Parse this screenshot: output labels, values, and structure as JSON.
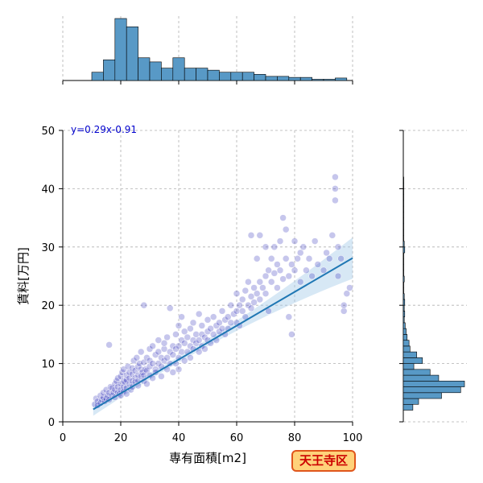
{
  "chart_data": {
    "type": "scatter",
    "subtype": "jointplot",
    "xlabel": "専有面積[m2]",
    "ylabel": "賃料[万円]",
    "xlim": [
      0,
      100
    ],
    "ylim": [
      0,
      50
    ],
    "x_ticks": [
      0,
      20,
      40,
      60,
      80,
      100
    ],
    "y_ticks": [
      0,
      10,
      20,
      30,
      40,
      50
    ],
    "grid": true,
    "annotation": "y=0.29x-0.91",
    "badge": "天王寺区",
    "colors": {
      "points": "#3333bb",
      "regression_line": "#1f77b4",
      "confidence_band": "#a6cde8",
      "histogram_fill": "#5899c6",
      "annotation": "#0000cc",
      "badge_text": "#cc0000",
      "badge_border": "#e0561c",
      "badge_fill": "#ffd27a"
    },
    "regression": {
      "slope": 0.29,
      "intercept": -0.91,
      "x_range": [
        10.5,
        100
      ]
    },
    "marginal_x_hist": {
      "bin_edges": [
        10,
        14,
        18,
        22,
        26,
        30,
        34,
        38,
        42,
        46,
        50,
        54,
        58,
        62,
        66,
        70,
        74,
        78,
        82,
        86,
        90,
        94,
        98
      ],
      "counts": [
        4,
        10,
        30,
        26,
        11,
        9,
        6,
        11,
        6,
        6,
        5,
        4,
        4,
        4,
        3,
        2,
        2,
        1.5,
        1.5,
        0.6,
        0.6,
        1.2
      ]
    },
    "marginal_y_hist": {
      "bin_edges": [
        2,
        3,
        4,
        5,
        6,
        7,
        8,
        9,
        10,
        11,
        12,
        13,
        14,
        15,
        16,
        17,
        18,
        19,
        20,
        21,
        22,
        23,
        24,
        25,
        26,
        27,
        28,
        29,
        30,
        31,
        32,
        33,
        34,
        35,
        36,
        37,
        38,
        39,
        40,
        41,
        42
      ],
      "counts": [
        10,
        16,
        40,
        60,
        64,
        37,
        28,
        11,
        20,
        14,
        7,
        6,
        4,
        3,
        2,
        1,
        1.5,
        1,
        1.5,
        1,
        0.5,
        0.5,
        1,
        0.5,
        0.5,
        0.5,
        0.5,
        1.5,
        1,
        0.5,
        0.5,
        0.5,
        0.5,
        0.5,
        0.5,
        0.5,
        0.5,
        0.5,
        0.5,
        0.5
      ]
    },
    "points": [
      [
        11,
        3
      ],
      [
        11.5,
        4
      ],
      [
        12,
        3.5
      ],
      [
        12,
        2.8
      ],
      [
        13,
        4.5
      ],
      [
        13,
        3.2
      ],
      [
        13.5,
        3.8
      ],
      [
        14,
        4.2
      ],
      [
        14,
        5
      ],
      [
        14.5,
        3.5
      ],
      [
        15,
        4
      ],
      [
        15,
        5.5
      ],
      [
        15.5,
        4.5
      ],
      [
        16,
        5
      ],
      [
        16,
        3.8
      ],
      [
        16,
        13.2
      ],
      [
        16.5,
        6
      ],
      [
        17,
        4.5
      ],
      [
        17,
        5.8
      ],
      [
        17.5,
        5
      ],
      [
        18,
        6.5
      ],
      [
        18,
        4.2
      ],
      [
        18,
        5.5
      ],
      [
        18.5,
        7
      ],
      [
        19,
        5
      ],
      [
        19,
        6
      ],
      [
        19,
        7.5
      ],
      [
        19.5,
        4.8
      ],
      [
        20,
        5.5
      ],
      [
        20,
        6.5
      ],
      [
        20,
        7.8
      ],
      [
        20,
        4.5
      ],
      [
        20.5,
        8.5
      ],
      [
        21,
        6
      ],
      [
        21,
        7
      ],
      [
        21,
        5.2
      ],
      [
        21,
        9
      ],
      [
        21.5,
        6.8
      ],
      [
        22,
        7.2
      ],
      [
        22,
        5.8
      ],
      [
        22,
        8
      ],
      [
        22,
        4.8
      ],
      [
        22.5,
        9.5
      ],
      [
        23,
        6.5
      ],
      [
        23,
        7.5
      ],
      [
        23,
        8.5
      ],
      [
        23.5,
        5.5
      ],
      [
        24,
        7
      ],
      [
        24,
        8.2
      ],
      [
        24,
        9.2
      ],
      [
        24,
        6
      ],
      [
        24.5,
        10.5
      ],
      [
        25,
        7.5
      ],
      [
        25,
        6.8
      ],
      [
        25,
        8.8
      ],
      [
        25.5,
        11
      ],
      [
        26,
        7
      ],
      [
        26,
        8
      ],
      [
        26,
        9.5
      ],
      [
        26,
        6.2
      ],
      [
        26.5,
        10
      ],
      [
        27,
        7.8
      ],
      [
        27,
        9
      ],
      [
        27,
        12
      ],
      [
        27.5,
        8.5
      ],
      [
        28,
        8
      ],
      [
        28,
        10.2
      ],
      [
        28,
        20
      ],
      [
        28,
        7
      ],
      [
        28.5,
        9
      ],
      [
        29,
        8.8
      ],
      [
        29,
        11
      ],
      [
        29,
        6.5
      ],
      [
        30,
        9.5
      ],
      [
        30,
        8
      ],
      [
        30,
        12.5
      ],
      [
        30,
        10.5
      ],
      [
        31,
        10
      ],
      [
        31,
        7.5
      ],
      [
        31,
        13
      ],
      [
        32,
        9
      ],
      [
        32,
        11.5
      ],
      [
        32,
        8.5
      ],
      [
        33,
        10
      ],
      [
        33,
        12
      ],
      [
        33,
        14
      ],
      [
        34,
        9.5
      ],
      [
        34,
        11
      ],
      [
        34,
        7.8
      ],
      [
        35,
        10.5
      ],
      [
        35,
        12.5
      ],
      [
        35,
        13.5
      ],
      [
        36,
        11
      ],
      [
        36,
        9
      ],
      [
        36,
        14.5
      ],
      [
        37,
        12
      ],
      [
        37,
        10
      ],
      [
        37,
        19.5
      ],
      [
        38,
        11.5
      ],
      [
        38,
        13
      ],
      [
        38,
        8.5
      ],
      [
        39,
        12.5
      ],
      [
        39,
        10
      ],
      [
        39,
        15
      ],
      [
        40,
        13
      ],
      [
        40,
        11
      ],
      [
        40,
        16.5
      ],
      [
        40,
        9
      ],
      [
        41,
        12
      ],
      [
        41,
        14
      ],
      [
        41,
        18
      ],
      [
        42,
        13.5
      ],
      [
        42,
        10.5
      ],
      [
        42,
        15.5
      ],
      [
        43,
        12
      ],
      [
        43,
        14.5
      ],
      [
        44,
        13
      ],
      [
        44,
        11
      ],
      [
        44,
        16
      ],
      [
        45,
        14
      ],
      [
        45,
        12.5
      ],
      [
        45,
        17
      ],
      [
        46,
        13.5
      ],
      [
        46,
        15
      ],
      [
        47,
        14
      ],
      [
        47,
        12
      ],
      [
        47,
        18.5
      ],
      [
        48,
        15
      ],
      [
        48,
        13
      ],
      [
        48,
        16.5
      ],
      [
        49,
        14.5
      ],
      [
        49,
        12.5
      ],
      [
        50,
        15.5
      ],
      [
        50,
        14
      ],
      [
        50,
        17.5
      ],
      [
        51,
        16
      ],
      [
        51,
        13.5
      ],
      [
        52,
        15
      ],
      [
        52,
        18
      ],
      [
        53,
        16.5
      ],
      [
        53,
        14
      ],
      [
        54,
        17
      ],
      [
        54,
        15.5
      ],
      [
        55,
        16
      ],
      [
        55,
        19
      ],
      [
        56,
        17.5
      ],
      [
        56,
        15
      ],
      [
        57,
        18
      ],
      [
        57,
        16
      ],
      [
        58,
        17
      ],
      [
        58,
        20
      ],
      [
        59,
        18.5
      ],
      [
        60,
        19
      ],
      [
        60,
        17
      ],
      [
        60,
        22
      ],
      [
        61,
        20
      ],
      [
        61,
        16.5
      ],
      [
        62,
        21
      ],
      [
        62,
        19
      ],
      [
        63,
        22.5
      ],
      [
        63,
        18
      ],
      [
        64,
        20
      ],
      [
        64,
        24
      ],
      [
        65,
        21.5
      ],
      [
        65,
        19.5
      ],
      [
        65,
        32
      ],
      [
        66,
        23
      ],
      [
        66,
        20.5
      ],
      [
        67,
        22
      ],
      [
        67,
        28
      ],
      [
        68,
        24
      ],
      [
        68,
        21
      ],
      [
        68,
        32
      ],
      [
        69,
        23
      ],
      [
        70,
        25
      ],
      [
        70,
        22
      ],
      [
        70,
        30
      ],
      [
        71,
        26
      ],
      [
        71,
        19
      ],
      [
        72,
        24
      ],
      [
        72,
        28
      ],
      [
        73,
        25.5
      ],
      [
        73,
        30
      ],
      [
        74,
        23
      ],
      [
        74,
        27
      ],
      [
        75,
        26
      ],
      [
        75,
        31
      ],
      [
        76,
        24.5
      ],
      [
        76,
        35
      ],
      [
        77,
        28
      ],
      [
        77,
        33
      ],
      [
        78,
        25
      ],
      [
        78,
        18
      ],
      [
        79,
        27
      ],
      [
        79,
        15
      ],
      [
        80,
        26
      ],
      [
        80,
        31
      ],
      [
        81,
        28
      ],
      [
        82,
        24
      ],
      [
        82,
        29
      ],
      [
        83,
        30
      ],
      [
        84,
        26
      ],
      [
        85,
        28
      ],
      [
        86,
        25
      ],
      [
        87,
        31
      ],
      [
        88,
        27
      ],
      [
        90,
        26
      ],
      [
        91,
        29
      ],
      [
        92,
        28
      ],
      [
        93,
        32
      ],
      [
        94,
        38
      ],
      [
        94,
        40
      ],
      [
        94,
        42
      ],
      [
        95,
        25
      ],
      [
        95,
        30
      ],
      [
        96,
        28
      ],
      [
        97,
        19
      ],
      [
        97,
        20
      ],
      [
        98,
        22
      ],
      [
        99,
        23
      ]
    ]
  }
}
